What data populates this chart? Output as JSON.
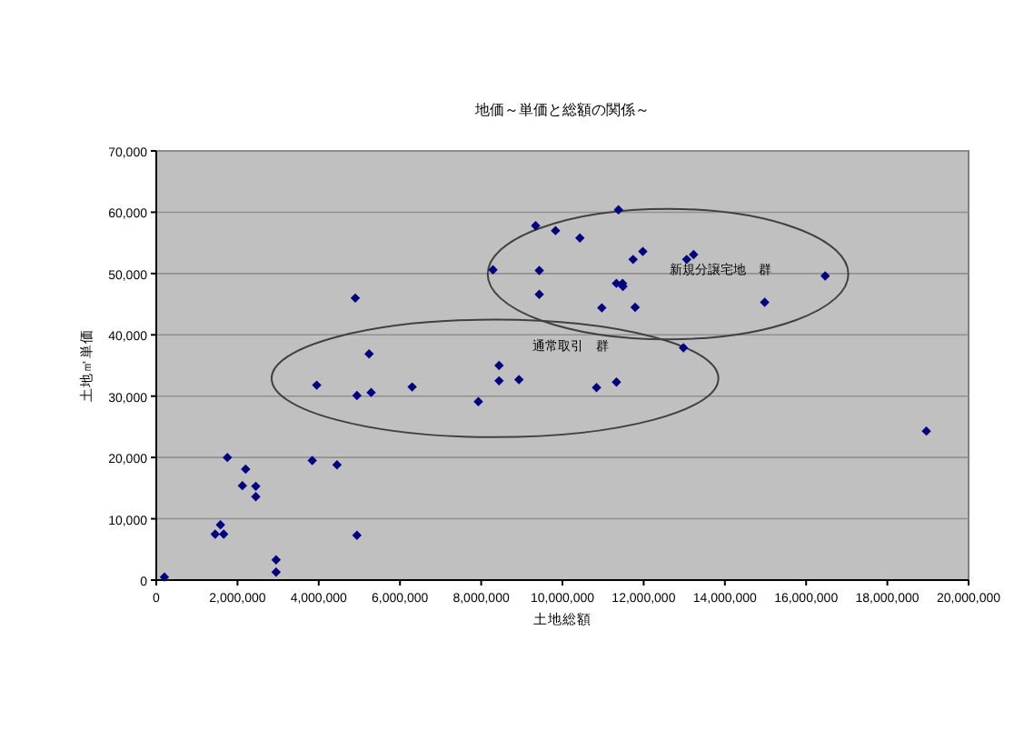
{
  "chart_data": {
    "type": "scatter",
    "title": "地価～単価と総額の関係～",
    "xlabel": "土地総額",
    "ylabel": "土地㎡単価",
    "x": [
      200000,
      1450000,
      1580000,
      1660000,
      1750000,
      2120000,
      2200000,
      2450000,
      2450000,
      2950000,
      2950000,
      3840000,
      3950000,
      4450000,
      4900000,
      4940000,
      4940000,
      5240000,
      5290000,
      6300000,
      7930000,
      8290000,
      8440000,
      8440000,
      8930000,
      9340000,
      9430000,
      9430000,
      9830000,
      10430000,
      11380000,
      11740000,
      11980000,
      13060000,
      13230000,
      11330000,
      11480000,
      11490000,
      16470000,
      10970000,
      11790000,
      14980000,
      12980000,
      10840000,
      11330000,
      18960000
    ],
    "series": [
      {
        "color": "#000080",
        "values": [
          500,
          7500,
          9000,
          7500,
          20000,
          15400,
          18100,
          15300,
          13600,
          3300,
          1300,
          19500,
          31800,
          18800,
          46000,
          30100,
          7300,
          36900,
          30600,
          31500,
          29100,
          50600,
          35000,
          32500,
          32700,
          57800,
          50500,
          46600,
          57000,
          55800,
          60400,
          52300,
          53600,
          52300,
          53100,
          48400,
          48400,
          47900,
          49600,
          44400,
          44500,
          45300,
          37900,
          31400,
          32300,
          24300
        ]
      }
    ],
    "xlim": [
      0,
      20000000
    ],
    "xticks": [
      0,
      {
        "value": 2000000,
        "label": "2,000,000"
      },
      {
        "value": 4000000,
        "label": "4,000,000"
      },
      {
        "value": 6000000,
        "label": "6,000,000"
      },
      {
        "value": 8000000,
        "label": "8,000,000"
      },
      {
        "value": 10000000,
        "label": "10,000,000"
      },
      {
        "value": 12000000,
        "label": "12,000,000"
      },
      {
        "value": 14000000,
        "label": "14,000,000"
      },
      {
        "value": 16000000,
        "label": "16,000,000"
      },
      {
        "value": 18000000,
        "label": "18,000,000"
      },
      {
        "value": 20000000,
        "label": "20,000,000"
      }
    ],
    "ylim": [
      0,
      70000
    ],
    "yticks": [
      0,
      {
        "value": 10000,
        "label": "10,000"
      },
      {
        "value": 20000,
        "label": "20,000"
      },
      {
        "value": 30000,
        "label": "30,000"
      },
      {
        "value": 40000,
        "label": "40,000"
      },
      {
        "value": 50000,
        "label": "50,000"
      },
      {
        "value": 60000,
        "label": "60,000"
      },
      {
        "value": 70000,
        "label": "70,000"
      }
    ],
    "grid": "y",
    "marker": "diamond",
    "annotations": [
      "新規分譲宅地　群",
      "通常取引　群"
    ]
  }
}
